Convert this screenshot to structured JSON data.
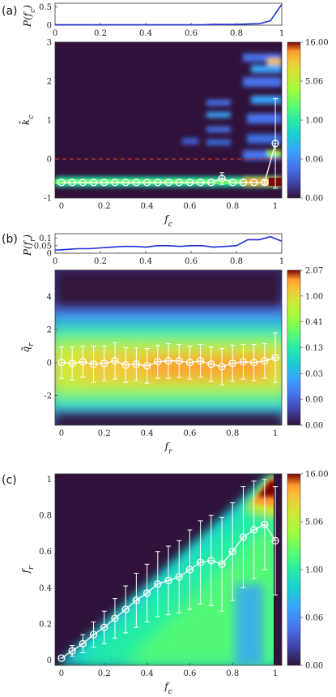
{
  "colors": {
    "line": "#1f2fd6",
    "marker": "#ffffff",
    "dashed": "#c0392b"
  },
  "chart_data": [
    {
      "panel": "(a)",
      "type": "line",
      "xlabel": "",
      "ylabel": "P(f_c)",
      "xlim": [
        0,
        1
      ],
      "ylim": [
        0,
        0.6
      ],
      "xticks": [
        "0",
        "0.2",
        "0.4",
        "0.6",
        "0.8",
        "1"
      ],
      "yticks": [
        "0",
        "0.5"
      ],
      "x": [
        0,
        0.05,
        0.1,
        0.15,
        0.2,
        0.25,
        0.3,
        0.35,
        0.4,
        0.45,
        0.5,
        0.55,
        0.6,
        0.65,
        0.7,
        0.75,
        0.8,
        0.85,
        0.9,
        0.95,
        1.0
      ],
      "values": [
        0.01,
        0.01,
        0.01,
        0.01,
        0.01,
        0.01,
        0.01,
        0.01,
        0.01,
        0.01,
        0.01,
        0.01,
        0.01,
        0.01,
        0.02,
        0.02,
        0.02,
        0.03,
        0.04,
        0.12,
        0.57
      ]
    },
    {
      "panel": "(a)",
      "type": "heatmap",
      "xlabel": "f_c",
      "ylabel": "k̃_c",
      "xlim": [
        -0.03,
        1.03
      ],
      "ylim": [
        -1,
        3
      ],
      "xticks": [
        "0",
        "0.2",
        "0.4",
        "0.6",
        "0.8",
        "1"
      ],
      "yticks": [
        "-1",
        "0",
        "1",
        "2",
        "3"
      ],
      "colorbar_ticks": [
        "0.00",
        "0.06",
        "1.00",
        "5.06",
        "16.00"
      ],
      "dashed_line_y": 0,
      "mean_x": [
        0,
        0.05,
        0.1,
        0.15,
        0.2,
        0.25,
        0.3,
        0.35,
        0.4,
        0.45,
        0.5,
        0.55,
        0.6,
        0.65,
        0.7,
        0.75,
        0.8,
        0.85,
        0.9,
        0.95,
        1.0
      ],
      "mean": [
        -0.6,
        -0.6,
        -0.6,
        -0.6,
        -0.6,
        -0.6,
        -0.6,
        -0.6,
        -0.6,
        -0.6,
        -0.6,
        -0.6,
        -0.6,
        -0.6,
        -0.6,
        -0.5,
        -0.6,
        -0.6,
        -0.6,
        -0.6,
        0.4
      ],
      "err": [
        0,
        0,
        0,
        0,
        0,
        0,
        0,
        0,
        0,
        0,
        0,
        0,
        0,
        0,
        0,
        0.15,
        0,
        0,
        0,
        0.05,
        1.15
      ]
    },
    {
      "panel": "(b)",
      "type": "line",
      "xlabel": "",
      "ylabel": "P(f_r)",
      "xlim": [
        0,
        1
      ],
      "ylim": [
        0,
        0.13
      ],
      "xticks": [
        "0",
        "0.2",
        "0.4",
        "0.6",
        "0.8",
        "1"
      ],
      "yticks": [
        "0",
        "0.05",
        "0.1"
      ],
      "x": [
        0,
        0.05,
        0.1,
        0.15,
        0.2,
        0.25,
        0.3,
        0.35,
        0.4,
        0.45,
        0.5,
        0.55,
        0.6,
        0.65,
        0.7,
        0.75,
        0.8,
        0.85,
        0.9,
        0.95,
        1.0
      ],
      "values": [
        0.02,
        0.025,
        0.03,
        0.03,
        0.035,
        0.04,
        0.045,
        0.045,
        0.04,
        0.05,
        0.05,
        0.045,
        0.05,
        0.05,
        0.04,
        0.045,
        0.05,
        0.09,
        0.09,
        0.11,
        0.08
      ]
    },
    {
      "panel": "(b)",
      "type": "heatmap",
      "xlabel": "f_r",
      "ylabel": "q̃_r",
      "xlim": [
        -0.03,
        1.03
      ],
      "ylim": [
        -3.8,
        5.6
      ],
      "xticks": [
        "0",
        "0.2",
        "0.4",
        "0.6",
        "0.8",
        "1"
      ],
      "yticks": [
        "-2",
        "0",
        "2",
        "4"
      ],
      "colorbar_ticks": [
        "0.00",
        "0.00",
        "0.03",
        "0.13",
        "0.41",
        "1.00",
        "2.07"
      ],
      "mean_x": [
        0,
        0.05,
        0.1,
        0.15,
        0.2,
        0.25,
        0.3,
        0.35,
        0.4,
        0.45,
        0.5,
        0.55,
        0.6,
        0.65,
        0.7,
        0.75,
        0.8,
        0.85,
        0.9,
        0.95,
        1.0
      ],
      "mean": [
        0.0,
        -0.05,
        0.05,
        -0.1,
        -0.05,
        0.1,
        -0.15,
        -0.1,
        -0.2,
        0.05,
        0.1,
        0.1,
        0.0,
        0.1,
        -0.1,
        -0.25,
        -0.05,
        0.05,
        0.0,
        0.1,
        0.3
      ],
      "err": [
        0.95,
        1.0,
        0.95,
        1.1,
        1.05,
        1.1,
        1.05,
        1.0,
        1.05,
        1.0,
        1.05,
        1.0,
        1.0,
        1.0,
        1.05,
        1.1,
        1.1,
        1.05,
        1.1,
        1.05,
        1.5
      ]
    },
    {
      "panel": "(c)",
      "type": "heatmap",
      "xlabel": "f_c",
      "ylabel": "f_r",
      "xlim": [
        -0.03,
        1.03
      ],
      "ylim": [
        -0.03,
        1.03
      ],
      "xticks": [
        "0",
        "0.2",
        "0.4",
        "0.6",
        "0.8",
        "1"
      ],
      "yticks": [
        "0",
        "0.2",
        "0.4",
        "0.6",
        "0.8",
        "1"
      ],
      "colorbar_ticks": [
        "0.00",
        "0.06",
        "1.00",
        "5.06",
        "16.00"
      ],
      "mean_x": [
        0,
        0.05,
        0.1,
        0.15,
        0.2,
        0.25,
        0.3,
        0.35,
        0.4,
        0.45,
        0.5,
        0.55,
        0.6,
        0.65,
        0.7,
        0.75,
        0.8,
        0.85,
        0.9,
        0.95,
        1.0
      ],
      "mean": [
        0.01,
        0.05,
        0.09,
        0.14,
        0.18,
        0.23,
        0.28,
        0.33,
        0.37,
        0.42,
        0.44,
        0.46,
        0.5,
        0.54,
        0.55,
        0.53,
        0.6,
        0.68,
        0.72,
        0.75,
        0.66
      ],
      "err": [
        0,
        0.03,
        0.05,
        0.07,
        0.09,
        0.11,
        0.13,
        0.15,
        0.16,
        0.18,
        0.19,
        0.2,
        0.22,
        0.23,
        0.25,
        0.26,
        0.27,
        0.28,
        0.27,
        0.25,
        0.3
      ]
    }
  ]
}
